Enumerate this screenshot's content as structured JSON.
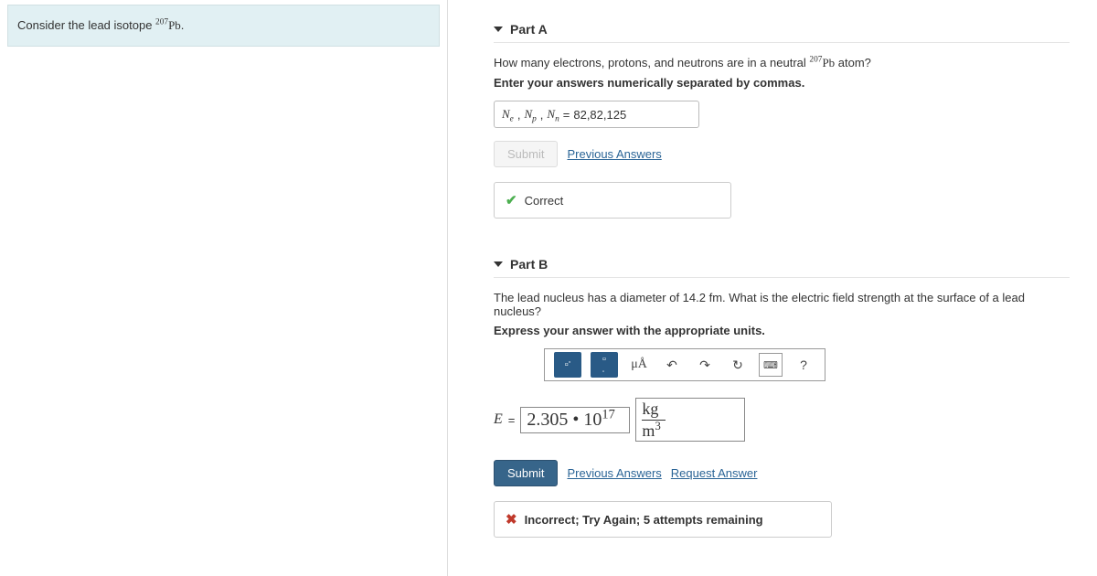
{
  "prompt": {
    "prefix": "Consider the lead isotope ",
    "isotope_sup": "207",
    "isotope_sym": "Pb",
    "suffix": "."
  },
  "partA": {
    "title": "Part A",
    "q_prefix": "How many electrons, protons, and neutrons are in a neutral ",
    "q_iso_sup": "207",
    "q_iso_sym": "Pb",
    "q_suffix": " atom?",
    "hint": "Enter your answers numerically separated by commas.",
    "var_e": "N",
    "var_e_sub": "e",
    "var_p": "N",
    "var_p_sub": "p",
    "var_n": "N",
    "var_n_sub": "n",
    "eq": " = ",
    "answer": "82,82,125",
    "submit": "Submit",
    "prev": "Previous Answers",
    "feedback": "Correct"
  },
  "partB": {
    "title": "Part B",
    "q": "The lead nucleus has a diameter of 14.2 fm. What is the electric field strength at the surface of a lead nucleus?",
    "hint": "Express your answer with the appropriate units.",
    "toolbar": {
      "ua": "μÅ",
      "undo": "↶",
      "redo": "↷",
      "reset": "↻",
      "kbd": "⌨",
      "help": "?"
    },
    "var": "E",
    "eq": " = ",
    "value": "2.305 • 10",
    "value_exp": "17",
    "unit_top": "kg",
    "unit_bot_base": "m",
    "unit_bot_exp": "3",
    "submit": "Submit",
    "prev": "Previous Answers",
    "request": "Request Answer",
    "feedback": "Incorrect; Try Again; 5 attempts remaining"
  }
}
